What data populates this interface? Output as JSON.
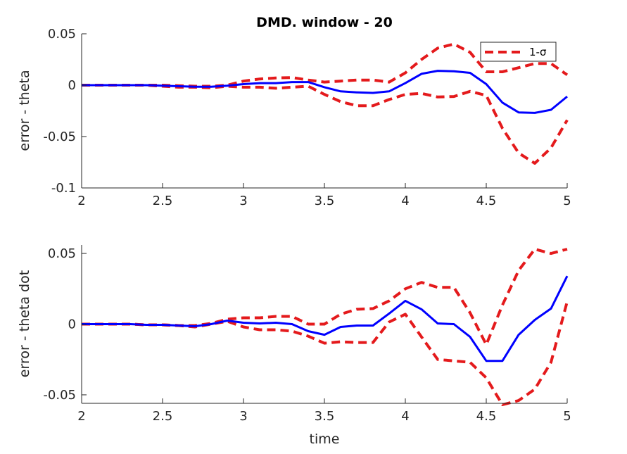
{
  "figure": {
    "title": "DMD. window - 20"
  },
  "chart_data": [
    {
      "type": "line",
      "title": "DMD. window - 20",
      "xlabel": "",
      "ylabel": "error - theta",
      "xlim": [
        2,
        5
      ],
      "ylim": [
        -0.1,
        0.05
      ],
      "xticks": [
        2,
        2.5,
        3,
        3.5,
        4,
        4.5,
        5
      ],
      "xtick_labels": [
        "2",
        "2.5",
        "3",
        "3.5",
        "4",
        "4.5",
        "5"
      ],
      "yticks": [
        -0.1,
        -0.05,
        0,
        0.05
      ],
      "ytick_labels": [
        "-0.1",
        "-0.05",
        "0",
        "0.05"
      ],
      "grid": false,
      "legend": {
        "position": "top-right",
        "entries": [
          "1-σ"
        ]
      },
      "x": [
        2.0,
        2.1,
        2.2,
        2.3,
        2.4,
        2.5,
        2.6,
        2.7,
        2.8,
        2.9,
        3.0,
        3.1,
        3.2,
        3.3,
        3.4,
        3.5,
        3.6,
        3.7,
        3.8,
        3.9,
        4.0,
        4.1,
        4.2,
        4.3,
        4.4,
        4.5,
        4.6,
        4.7,
        4.8,
        4.9,
        5.0
      ],
      "series": [
        {
          "style": "solid",
          "color": "#0000ff",
          "values": [
            0,
            0,
            0,
            0,
            0,
            -0.0005,
            -0.001,
            -0.0015,
            -0.0015,
            -0.0005,
            0.001,
            0.002,
            0.002,
            0.003,
            0.003,
            -0.002,
            -0.006,
            -0.007,
            -0.0075,
            -0.006,
            0.002,
            0.011,
            0.014,
            0.0135,
            0.012,
            0.001,
            -0.017,
            -0.0265,
            -0.027,
            -0.024,
            -0.011
          ]
        },
        {
          "name": "1-σ",
          "style": "dashed",
          "color": "#e41a1c",
          "values": [
            0,
            0,
            0,
            0,
            0,
            0,
            -0.0005,
            -0.001,
            -0.001,
            0,
            0.004,
            0.006,
            0.007,
            0.0075,
            0.005,
            0.003,
            0.004,
            0.005,
            0.005,
            0.003,
            0.012,
            0.025,
            0.036,
            0.04,
            0.032,
            0.013,
            0.013,
            0.017,
            0.021,
            0.021,
            0.01
          ]
        },
        {
          "style": "dashed",
          "color": "#e41a1c",
          "values": [
            0,
            0,
            0,
            0,
            0,
            -0.001,
            -0.002,
            -0.002,
            -0.0025,
            -0.001,
            -0.002,
            -0.002,
            -0.003,
            -0.002,
            -0.001,
            -0.009,
            -0.016,
            -0.02,
            -0.02,
            -0.014,
            -0.009,
            -0.008,
            -0.0115,
            -0.011,
            -0.006,
            -0.01,
            -0.042,
            -0.066,
            -0.076,
            -0.061,
            -0.034
          ]
        }
      ]
    },
    {
      "type": "line",
      "xlabel": "time",
      "ylabel": "error - theta dot",
      "xlim": [
        2,
        5
      ],
      "ylim": [
        -0.056,
        0.056
      ],
      "xticks": [
        2,
        2.5,
        3,
        3.5,
        4,
        4.5,
        5
      ],
      "xtick_labels": [
        "2",
        "2.5",
        "3",
        "3.5",
        "4",
        "4.5",
        "5"
      ],
      "yticks": [
        -0.05,
        0,
        0.05
      ],
      "ytick_labels": [
        "-0.05",
        "0",
        "0.05"
      ],
      "grid": false,
      "x": [
        2.0,
        2.1,
        2.2,
        2.3,
        2.4,
        2.5,
        2.6,
        2.7,
        2.8,
        2.9,
        3.0,
        3.1,
        3.2,
        3.3,
        3.4,
        3.5,
        3.6,
        3.7,
        3.8,
        3.9,
        4.0,
        4.1,
        4.2,
        4.3,
        4.4,
        4.5,
        4.6,
        4.7,
        4.8,
        4.9,
        5.0
      ],
      "series": [
        {
          "style": "solid",
          "color": "#0000ff",
          "values": [
            0,
            0,
            0,
            0,
            -0.0005,
            -0.0005,
            -0.001,
            -0.0015,
            0,
            0.0025,
            0.001,
            0.0005,
            0.001,
            0,
            -0.005,
            -0.0075,
            -0.002,
            -0.001,
            -0.001,
            0.0075,
            0.0165,
            0.0105,
            0.0005,
            0,
            -0.009,
            -0.026,
            -0.026,
            -0.0075,
            0.003,
            0.011,
            0.034
          ]
        },
        {
          "name": "1-σ",
          "style": "dashed",
          "color": "#e41a1c",
          "values": [
            0,
            0,
            0,
            0,
            -0.0005,
            -0.0005,
            -0.001,
            -0.001,
            0.0005,
            0.0035,
            0.0045,
            0.0045,
            0.0055,
            0.0055,
            0,
            0,
            0.007,
            0.0105,
            0.011,
            0.0165,
            0.025,
            0.0295,
            0.026,
            0.026,
            0.008,
            -0.0145,
            0.0135,
            0.038,
            0.053,
            0.05,
            0.053
          ]
        },
        {
          "style": "dashed",
          "color": "#e41a1c",
          "values": [
            0,
            0,
            0,
            0,
            -0.0005,
            -0.0005,
            -0.001,
            -0.002,
            0,
            0.002,
            -0.002,
            -0.004,
            -0.004,
            -0.005,
            -0.0085,
            -0.0135,
            -0.0125,
            -0.013,
            -0.013,
            0.0015,
            0.007,
            -0.009,
            -0.025,
            -0.026,
            -0.027,
            -0.038,
            -0.057,
            -0.054,
            -0.046,
            -0.027,
            0.016
          ]
        }
      ]
    }
  ]
}
